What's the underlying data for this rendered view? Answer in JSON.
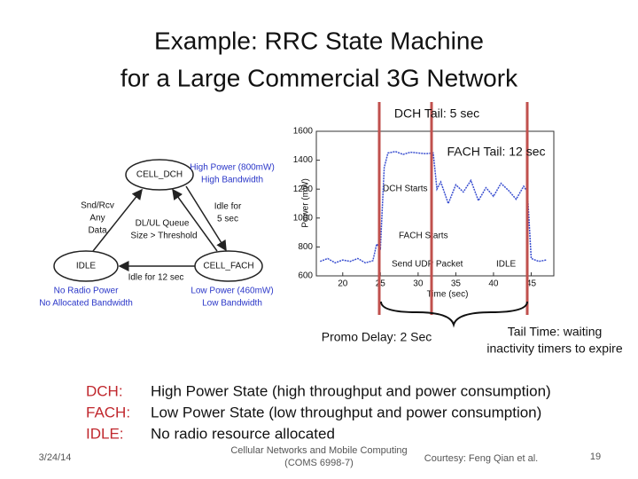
{
  "title": [
    "Example: RRC State Machine",
    "for a Large Commercial 3G Network"
  ],
  "state_diagram": {
    "states": [
      "CELL_DCH",
      "IDLE",
      "CELL_FACH"
    ],
    "dch_info": [
      "High Power (800mW)",
      "High Bandwidth"
    ],
    "idle_to_dch": [
      "Snd/Rcv",
      "Any",
      "Data"
    ],
    "fach_to_dch": [
      "DL/UL Queue",
      "Size > Threshold"
    ],
    "dch_to_fach": [
      "Idle for",
      "5 sec"
    ],
    "fach_to_idle": "Idle for 12 sec",
    "idle_info": [
      "No Radio Power",
      "No Allocated Bandwidth"
    ],
    "fach_info": [
      "Low Power (460mW)",
      "Low Bandwidth"
    ]
  },
  "power_plot": {
    "ylabel": "Power (mW)",
    "xlabel": "Time (sec)",
    "xlim": [
      16.5,
      48
    ],
    "ylim": [
      600,
      1600
    ],
    "xticks": [
      20,
      25,
      30,
      35,
      40,
      45
    ],
    "yticks": [
      600,
      800,
      1000,
      1200,
      1400,
      1600
    ],
    "color": "#3a4fd0",
    "x": [
      17,
      18,
      19,
      20,
      21,
      22,
      23,
      24,
      24.5,
      25,
      25.5,
      26,
      27,
      28,
      29,
      30,
      31,
      32,
      32.5,
      33,
      34,
      35,
      36,
      37,
      38,
      39,
      40,
      41,
      42,
      43,
      44,
      44.5,
      45,
      46,
      47
    ],
    "values": [
      700,
      720,
      690,
      710,
      700,
      720,
      690,
      705,
      820,
      790,
      1350,
      1450,
      1460,
      1440,
      1455,
      1450,
      1445,
      1450,
      1200,
      1250,
      1100,
      1230,
      1180,
      1260,
      1120,
      1210,
      1150,
      1240,
      1190,
      1130,
      1220,
      1180,
      720,
      700,
      710
    ],
    "annotations": [
      "DCH Starts",
      "FACH Starts",
      "Send UDP Packet",
      "IDLE"
    ]
  },
  "callouts": {
    "dch_tail": "DCH Tail: 5 sec",
    "fach_tail": "FACH Tail: 12 sec",
    "promo_delay": "Promo Delay: 2 Sec",
    "tail_time": [
      "Tail Time: waiting",
      "inactivity timers to expire"
    ]
  },
  "definitions": [
    {
      "term": "DCH:",
      "text": "High Power State (high throughput and power consumption)"
    },
    {
      "term": "FACH:",
      "text": "Low Power State (low throughput and power consumption)"
    },
    {
      "term": "IDLE:",
      "text": "No radio resource allocated"
    }
  ],
  "footer": {
    "date": "3/24/14",
    "course": [
      "Cellular Networks and Mobile Computing",
      "(COMS 6998-7)"
    ],
    "courtesy": "Courtesy: Feng Qian et al.",
    "page": "19"
  }
}
